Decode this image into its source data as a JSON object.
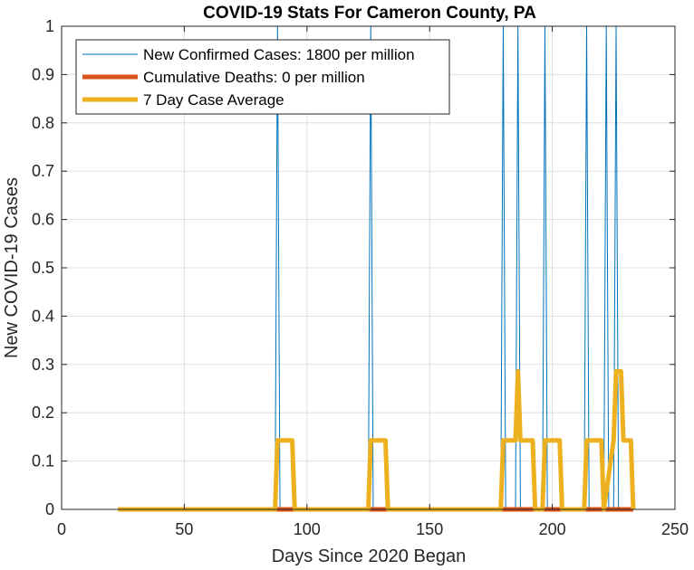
{
  "chart_data": {
    "type": "line",
    "title": "COVID-19 Stats For Cameron County, PA",
    "xlabel": "Days Since 2020 Began",
    "ylabel": "New COVID-19 Cases",
    "xlim": [
      0,
      250
    ],
    "ylim": [
      0,
      1
    ],
    "xticks": [
      0,
      50,
      100,
      150,
      200,
      250
    ],
    "xtick_labels": [
      "0",
      "50",
      "100",
      "150",
      "200",
      "250"
    ],
    "yticks": [
      0,
      0.1,
      0.2,
      0.3,
      0.4,
      0.5,
      0.6,
      0.7,
      0.8,
      0.9,
      1
    ],
    "ytick_labels": [
      "0",
      "0.1",
      "0.2",
      "0.3",
      "0.4",
      "0.5",
      "0.6",
      "0.7",
      "0.8",
      "0.9",
      "1"
    ],
    "grid": true,
    "legend_position": "top-left",
    "series": [
      {
        "name": "New Confirmed Cases: 1800 per million",
        "color": "#0072bd",
        "style": "thin",
        "spike_days": [
          88,
          126,
          180,
          186,
          197,
          214,
          222,
          226
        ],
        "x_start": 23,
        "x_end": 233,
        "spike_value": 1
      },
      {
        "name": "Cumulative Deaths: 0 per million",
        "color": "#d95319",
        "style": "thick",
        "x": [
          23,
          233
        ],
        "y": [
          0,
          0
        ]
      },
      {
        "name": "7 Day Case Average",
        "color": "#edb120",
        "style": "thick",
        "x": [
          23,
          87,
          88,
          94,
          95,
          125,
          126,
          132,
          133,
          179,
          180,
          185,
          186,
          187,
          192,
          193,
          196,
          197,
          203,
          204,
          213,
          214,
          220,
          221,
          225,
          226,
          228,
          229,
          232,
          233
        ],
        "y": [
          0,
          0,
          0.1429,
          0.1429,
          0,
          0,
          0.1429,
          0.1429,
          0,
          0,
          0.1429,
          0.1429,
          0.2857,
          0.1429,
          0.1429,
          0,
          0,
          0.1429,
          0.1429,
          0,
          0,
          0.1429,
          0.1429,
          0,
          0.1429,
          0.2857,
          0.2857,
          0.1429,
          0.1429,
          0
        ]
      }
    ]
  }
}
